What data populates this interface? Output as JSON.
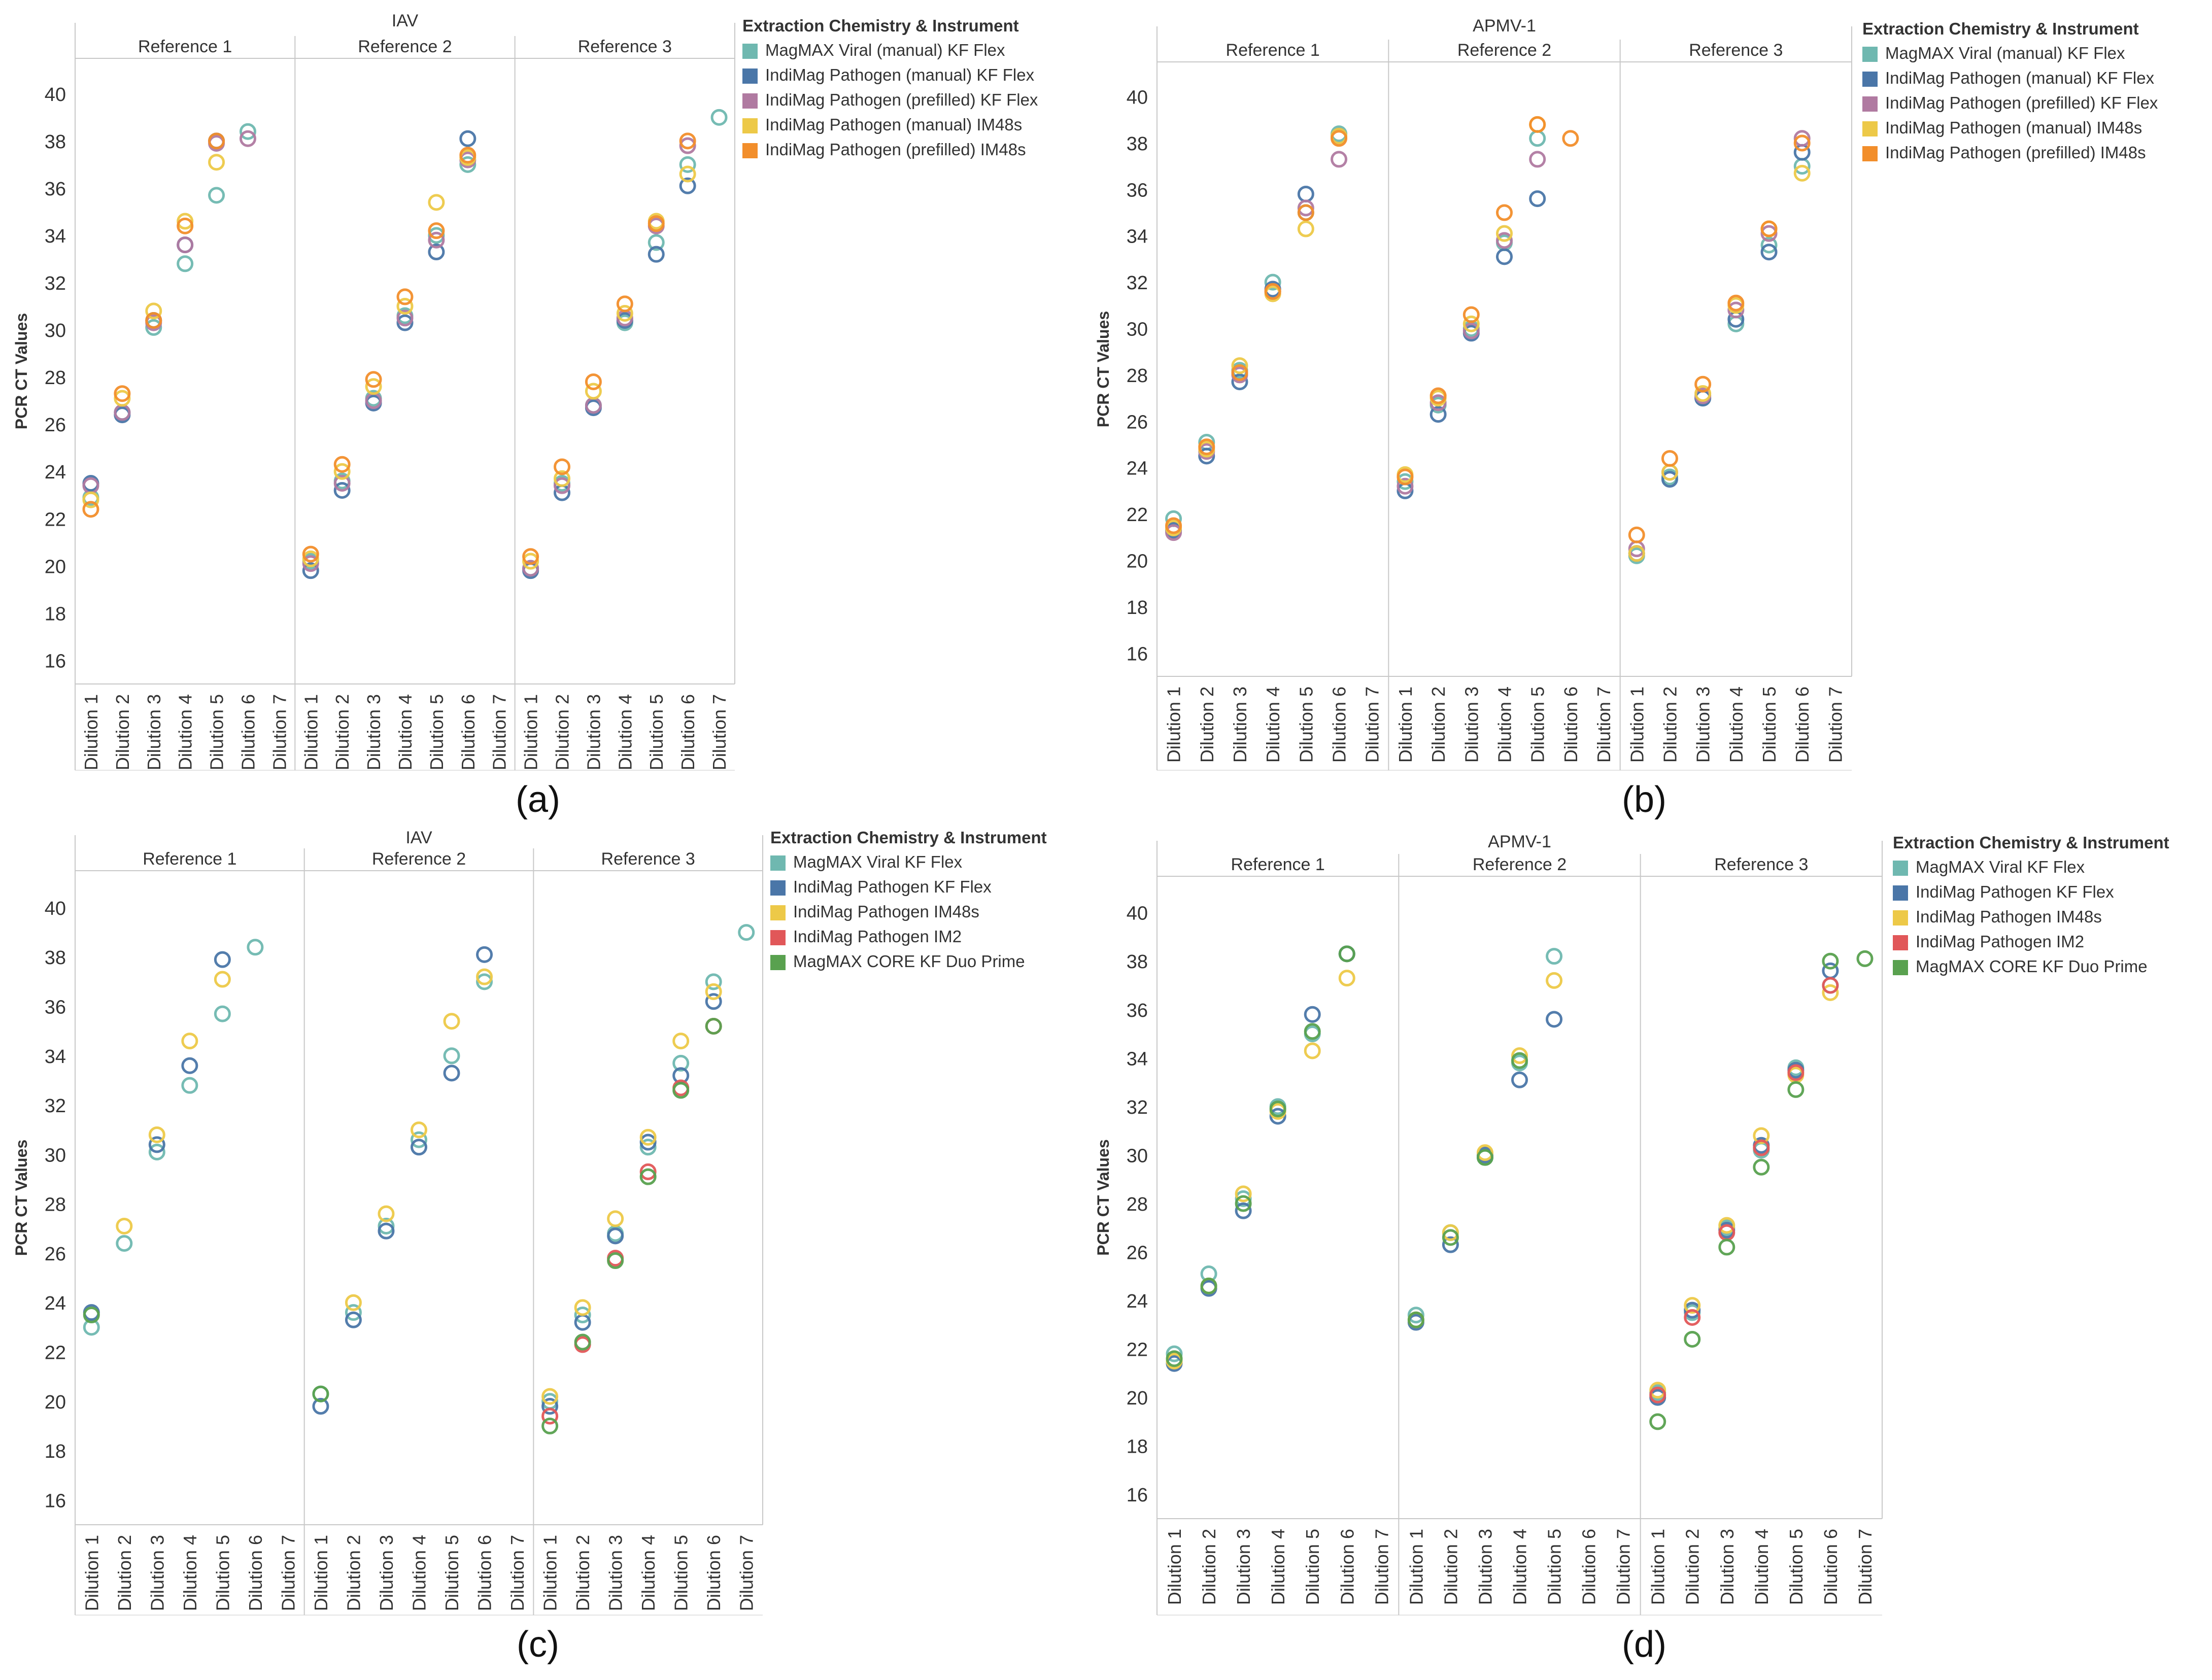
{
  "figure_caption": "",
  "chart_data": [
    {
      "id": "a",
      "type": "scatter",
      "panel_label": "(a)",
      "title": "IAV",
      "ylabel": "PCR CT Values",
      "ylim": [
        15,
        41.5
      ],
      "yticks": [
        16,
        18,
        20,
        22,
        24,
        26,
        28,
        30,
        32,
        34,
        36,
        38,
        40
      ],
      "groups": [
        "Reference 1",
        "Reference 2",
        "Reference 3"
      ],
      "categories": [
        "Dilution 1",
        "Dilution 2",
        "Dilution 3",
        "Dilution 4",
        "Dilution 5",
        "Dilution 6",
        "Dilution 7"
      ],
      "legend_title": "Extraction Chemistry & Instrument",
      "series": [
        {
          "name": "MagMAX Viral (manual) KF Flex",
          "color": "#6fb8b0",
          "values": [
            [
              22.9,
              26.5,
              30.1,
              32.8,
              35.7,
              38.4,
              null
            ],
            [
              20.2,
              23.6,
              27.1,
              30.6,
              34.0,
              37.0,
              null
            ],
            [
              19.9,
              23.5,
              26.8,
              30.3,
              33.7,
              37.0,
              39.0
            ]
          ]
        },
        {
          "name": "IndiMag Pathogen (manual) KF Flex",
          "color": "#4a76a8",
          "values": [
            [
              23.5,
              26.4,
              30.4,
              33.6,
              38.0,
              null,
              null
            ],
            [
              19.8,
              23.2,
              26.9,
              30.3,
              33.3,
              38.1,
              null
            ],
            [
              19.8,
              23.1,
              26.7,
              30.4,
              33.2,
              36.1,
              null
            ]
          ]
        },
        {
          "name": "IndiMag Pathogen (prefilled) KF Flex",
          "color": "#b07aa1",
          "values": [
            [
              23.4,
              26.5,
              30.3,
              33.6,
              37.9,
              38.1,
              null
            ],
            [
              20.1,
              23.5,
              27.0,
              30.5,
              33.8,
              37.2,
              null
            ],
            [
              19.9,
              23.4,
              26.8,
              30.5,
              34.4,
              37.8,
              null
            ]
          ]
        },
        {
          "name": "IndiMag Pathogen (manual) IM48s",
          "color": "#edc948",
          "values": [
            [
              22.8,
              27.1,
              30.8,
              34.6,
              37.1,
              null,
              null
            ],
            [
              20.3,
              24.0,
              27.6,
              31.0,
              35.4,
              37.3,
              null
            ],
            [
              20.2,
              23.7,
              27.4,
              30.7,
              34.6,
              36.6,
              null
            ]
          ]
        },
        {
          "name": "IndiMag Pathogen (prefilled) IM48s",
          "color": "#f28e2b",
          "values": [
            [
              22.4,
              27.3,
              30.4,
              34.4,
              38.0,
              null,
              null
            ],
            [
              20.5,
              24.3,
              27.9,
              31.4,
              34.2,
              37.4,
              null
            ],
            [
              20.4,
              24.2,
              27.8,
              31.1,
              34.5,
              38.0,
              null
            ]
          ]
        }
      ]
    },
    {
      "id": "b",
      "type": "scatter",
      "panel_label": "(b)",
      "title": "APMV-1",
      "ylabel": "PCR CT Values",
      "ylim": [
        15,
        41.5
      ],
      "yticks": [
        16,
        18,
        20,
        22,
        24,
        26,
        28,
        30,
        32,
        34,
        36,
        38,
        40
      ],
      "groups": [
        "Reference 1",
        "Reference 2",
        "Reference 3"
      ],
      "categories": [
        "Dilution 1",
        "Dilution 2",
        "Dilution 3",
        "Dilution 4",
        "Dilution 5",
        "Dilution 6",
        "Dilution 7"
      ],
      "legend_title": "Extraction Chemistry & Instrument",
      "series": [
        {
          "name": "MagMAX Viral (manual) KF Flex",
          "color": "#6fb8b0",
          "values": [
            [
              21.8,
              25.1,
              28.2,
              32.0,
              35.0,
              38.4,
              null
            ],
            [
              23.4,
              26.7,
              30.0,
              33.7,
              38.2,
              null,
              null
            ],
            [
              20.2,
              23.6,
              27.0,
              30.2,
              33.6,
              37.0,
              null
            ]
          ]
        },
        {
          "name": "IndiMag Pathogen (manual) KF Flex",
          "color": "#4a76a8",
          "values": [
            [
              21.3,
              24.5,
              27.7,
              31.7,
              35.8,
              38.3,
              null
            ],
            [
              23.0,
              26.3,
              29.8,
              33.1,
              35.6,
              null,
              null
            ],
            [
              20.3,
              23.5,
              27.0,
              30.4,
              33.3,
              37.6,
              null
            ]
          ]
        },
        {
          "name": "IndiMag Pathogen (prefilled) KF Flex",
          "color": "#b07aa1",
          "values": [
            [
              21.2,
              24.7,
              28.0,
              31.6,
              35.2,
              37.3,
              null
            ],
            [
              23.2,
              26.8,
              29.9,
              33.8,
              37.3,
              null,
              null
            ],
            [
              20.5,
              23.8,
              27.1,
              30.8,
              34.1,
              38.2,
              null
            ]
          ]
        },
        {
          "name": "IndiMag Pathogen (manual) IM48s",
          "color": "#edc948",
          "values": [
            [
              21.4,
              24.8,
              28.4,
              31.5,
              34.3,
              38.3,
              null
            ],
            [
              23.7,
              27.0,
              30.2,
              34.1,
              38.8,
              null,
              null
            ],
            [
              20.3,
              23.8,
              27.2,
              31.0,
              34.3,
              36.7,
              null
            ]
          ]
        },
        {
          "name": "IndiMag Pathogen (prefilled) IM48s",
          "color": "#f28e2b",
          "values": [
            [
              21.5,
              24.9,
              28.1,
              31.6,
              35.0,
              38.2,
              null
            ],
            [
              23.6,
              27.1,
              30.6,
              35.0,
              38.8,
              38.2,
              null
            ],
            [
              21.1,
              24.4,
              27.6,
              31.1,
              34.3,
              38.0,
              null
            ]
          ]
        }
      ]
    },
    {
      "id": "c",
      "type": "scatter",
      "panel_label": "(c)",
      "title": "IAV",
      "ylabel": "PCR CT Values",
      "ylim": [
        15,
        41.5
      ],
      "yticks": [
        16,
        18,
        20,
        22,
        24,
        26,
        28,
        30,
        32,
        34,
        36,
        38,
        40
      ],
      "groups": [
        "Reference 1",
        "Reference 2",
        "Reference 3"
      ],
      "categories": [
        "Dilution 1",
        "Dilution 2",
        "Dilution 3",
        "Dilution 4",
        "Dilution 5",
        "Dilution 6",
        "Dilution 7"
      ],
      "legend_title": "Extraction Chemistry & Instrument",
      "series": [
        {
          "name": "MagMAX Viral KF Flex",
          "color": "#6fb8b0",
          "values": [
            [
              23.0,
              26.4,
              30.1,
              32.8,
              35.7,
              38.4,
              null
            ],
            [
              20.3,
              23.6,
              27.1,
              30.6,
              34.0,
              37.0,
              null
            ],
            [
              20.0,
              23.5,
              26.8,
              30.3,
              33.7,
              37.0,
              39.0
            ]
          ]
        },
        {
          "name": "IndiMag Pathogen KF Flex",
          "color": "#4a76a8",
          "values": [
            [
              23.6,
              null,
              30.4,
              33.6,
              37.9,
              null,
              null
            ],
            [
              19.8,
              23.3,
              26.9,
              30.3,
              33.3,
              38.1,
              null
            ],
            [
              19.8,
              23.2,
              26.7,
              30.5,
              33.2,
              36.2,
              null
            ]
          ]
        },
        {
          "name": "IndiMag Pathogen IM48s",
          "color": "#edc948",
          "values": [
            [
              null,
              27.1,
              30.8,
              34.6,
              37.1,
              null,
              null
            ],
            [
              null,
              24.0,
              27.6,
              31.0,
              35.4,
              37.2,
              null
            ],
            [
              20.2,
              23.8,
              27.4,
              30.7,
              34.6,
              36.6,
              null
            ]
          ]
        },
        {
          "name": "IndiMag Pathogen IM2",
          "color": "#e15759",
          "values": [
            [
              null,
              null,
              null,
              null,
              null,
              null,
              null
            ],
            [
              null,
              null,
              null,
              null,
              null,
              null,
              null
            ],
            [
              19.4,
              22.3,
              25.8,
              29.3,
              32.7,
              35.2,
              null
            ]
          ]
        },
        {
          "name": "MagMAX CORE KF Duo Prime",
          "color": "#59a14f",
          "values": [
            [
              23.5,
              null,
              null,
              null,
              null,
              null,
              null
            ],
            [
              20.3,
              null,
              null,
              null,
              null,
              null,
              null
            ],
            [
              19.0,
              22.4,
              25.7,
              29.1,
              32.6,
              35.2,
              null
            ]
          ]
        }
      ]
    },
    {
      "id": "d",
      "type": "scatter",
      "panel_label": "(d)",
      "title": "APMV-1",
      "ylabel": "PCR CT Values",
      "ylim": [
        15,
        41.5
      ],
      "yticks": [
        16,
        18,
        20,
        22,
        24,
        26,
        28,
        30,
        32,
        34,
        36,
        38,
        40
      ],
      "groups": [
        "Reference 1",
        "Reference 2",
        "Reference 3"
      ],
      "categories": [
        "Dilution 1",
        "Dilution 2",
        "Dilution 3",
        "Dilution 4",
        "Dilution 5",
        "Dilution 6",
        "Dilution 7"
      ],
      "legend_title": "Extraction Chemistry & Instrument",
      "series": [
        {
          "name": "MagMAX Viral KF Flex",
          "color": "#6fb8b0",
          "values": [
            [
              21.8,
              25.1,
              28.2,
              32.0,
              35.0,
              38.3,
              null
            ],
            [
              23.4,
              26.8,
              29.9,
              33.8,
              38.2,
              null,
              null
            ],
            [
              20.2,
              23.5,
              27.0,
              30.2,
              33.6,
              37.0,
              null
            ]
          ]
        },
        {
          "name": "IndiMag Pathogen KF Flex",
          "color": "#4a76a8",
          "values": [
            [
              21.4,
              24.5,
              27.7,
              31.6,
              35.8,
              38.3,
              null
            ],
            [
              23.1,
              26.3,
              30.0,
              33.1,
              35.6,
              null,
              null
            ],
            [
              20.0,
              23.6,
              26.9,
              30.4,
              33.5,
              37.6,
              null
            ]
          ]
        },
        {
          "name": "IndiMag Pathogen IM48s",
          "color": "#edc948",
          "values": [
            [
              21.5,
              24.6,
              28.4,
              31.8,
              34.3,
              37.3,
              null
            ],
            [
              23.2,
              26.8,
              30.1,
              34.1,
              37.2,
              null,
              null
            ],
            [
              20.3,
              23.8,
              27.1,
              30.8,
              33.3,
              36.7,
              null
            ]
          ]
        },
        {
          "name": "IndiMag Pathogen IM2",
          "color": "#e15759",
          "values": [
            [
              null,
              null,
              null,
              null,
              null,
              null,
              null
            ],
            [
              null,
              null,
              null,
              null,
              null,
              null,
              null
            ],
            [
              20.1,
              23.3,
              26.8,
              30.3,
              33.4,
              37.0,
              null
            ]
          ]
        },
        {
          "name": "MagMAX CORE KF Duo Prime",
          "color": "#59a14f",
          "values": [
            [
              21.6,
              24.6,
              28.0,
              31.9,
              35.1,
              38.3,
              null
            ],
            [
              23.2,
              26.6,
              29.9,
              33.9,
              null,
              null,
              null
            ],
            [
              19.0,
              22.4,
              26.2,
              29.5,
              32.7,
              38.0,
              38.1
            ]
          ]
        }
      ]
    }
  ]
}
